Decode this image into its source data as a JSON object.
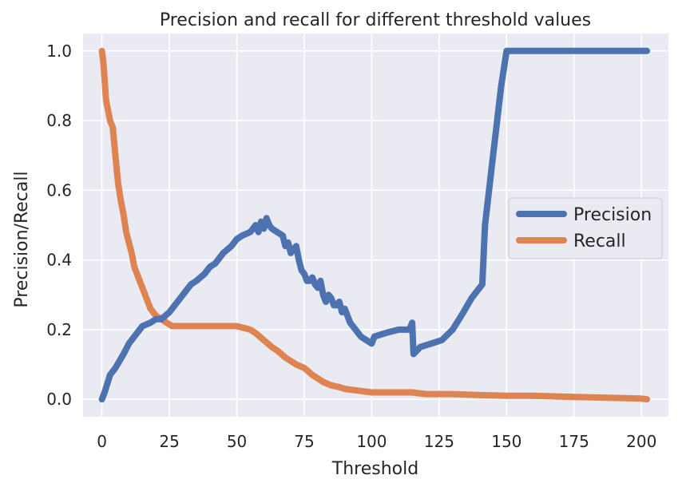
{
  "chart_data": {
    "type": "line",
    "title": "Precision and recall for different threshold values",
    "xlabel": "Threshold",
    "ylabel": "Precision/Recall",
    "xlim": [
      -7,
      210
    ],
    "ylim": [
      -0.05,
      1.05
    ],
    "xticks": [
      0,
      25,
      50,
      75,
      100,
      125,
      150,
      175,
      200
    ],
    "xtick_labels": [
      "0",
      "25",
      "50",
      "75",
      "100",
      "125",
      "150",
      "175",
      "200"
    ],
    "yticks": [
      0.0,
      0.2,
      0.4,
      0.6,
      0.8,
      1.0
    ],
    "ytick_labels": [
      "0.0",
      "0.2",
      "0.4",
      "0.6",
      "0.8",
      "1.0"
    ],
    "grid": true,
    "background": "#eaeaf2",
    "legend_position": "right",
    "series": [
      {
        "name": "Precision",
        "color": "#4c72b0",
        "x": [
          0,
          1,
          3,
          5,
          8,
          10,
          12,
          15,
          18,
          20,
          22,
          25,
          27,
          30,
          33,
          35,
          38,
          40,
          42,
          45,
          48,
          50,
          52,
          55,
          57,
          58,
          59,
          60,
          61,
          62,
          63,
          65,
          67,
          68,
          69,
          70,
          71,
          72,
          73,
          74,
          75,
          76,
          77,
          78,
          79,
          80,
          81,
          82,
          83,
          84,
          85,
          86,
          87,
          88,
          89,
          90,
          92,
          94,
          96,
          98,
          100,
          101,
          105,
          110,
          114,
          115,
          115.5,
          118,
          122,
          126,
          130,
          134,
          137,
          140,
          141,
          142,
          145,
          148,
          150,
          155,
          160,
          170,
          180,
          190,
          200,
          202
        ],
        "values": [
          0.0,
          0.02,
          0.07,
          0.09,
          0.13,
          0.16,
          0.18,
          0.21,
          0.22,
          0.23,
          0.23,
          0.25,
          0.27,
          0.3,
          0.33,
          0.34,
          0.36,
          0.38,
          0.39,
          0.42,
          0.44,
          0.46,
          0.47,
          0.48,
          0.5,
          0.48,
          0.51,
          0.49,
          0.52,
          0.5,
          0.49,
          0.48,
          0.47,
          0.44,
          0.45,
          0.42,
          0.43,
          0.44,
          0.4,
          0.37,
          0.36,
          0.34,
          0.34,
          0.35,
          0.33,
          0.32,
          0.34,
          0.3,
          0.28,
          0.3,
          0.29,
          0.27,
          0.27,
          0.28,
          0.25,
          0.26,
          0.22,
          0.2,
          0.18,
          0.17,
          0.16,
          0.18,
          0.19,
          0.2,
          0.2,
          0.22,
          0.13,
          0.15,
          0.16,
          0.17,
          0.2,
          0.25,
          0.29,
          0.32,
          0.33,
          0.5,
          0.7,
          0.9,
          1.0,
          1.0,
          1.0,
          1.0,
          1.0,
          1.0,
          1.0,
          1.0
        ]
      },
      {
        "name": "Recall",
        "color": "#dd8452",
        "x": [
          0,
          0.5,
          1,
          1.5,
          2,
          3,
          4,
          5,
          6,
          7,
          8,
          9,
          10,
          11,
          12,
          13,
          14,
          15,
          16,
          17,
          18,
          19,
          20,
          22,
          24,
          26,
          30,
          35,
          40,
          45,
          50,
          55,
          57,
          60,
          63,
          65,
          68,
          70,
          72,
          75,
          78,
          80,
          82,
          85,
          88,
          90,
          95,
          100,
          105,
          110,
          115,
          120,
          130,
          140,
          150,
          160,
          170,
          180,
          190,
          200,
          202
        ],
        "values": [
          1.0,
          0.97,
          0.92,
          0.86,
          0.84,
          0.8,
          0.78,
          0.7,
          0.62,
          0.57,
          0.53,
          0.48,
          0.45,
          0.42,
          0.38,
          0.36,
          0.34,
          0.32,
          0.3,
          0.28,
          0.26,
          0.25,
          0.24,
          0.23,
          0.22,
          0.21,
          0.21,
          0.21,
          0.21,
          0.21,
          0.21,
          0.2,
          0.19,
          0.17,
          0.15,
          0.14,
          0.12,
          0.11,
          0.1,
          0.09,
          0.07,
          0.06,
          0.05,
          0.04,
          0.035,
          0.03,
          0.025,
          0.02,
          0.02,
          0.02,
          0.02,
          0.015,
          0.015,
          0.012,
          0.01,
          0.01,
          0.008,
          0.006,
          0.004,
          0.002,
          0.0
        ]
      }
    ]
  }
}
